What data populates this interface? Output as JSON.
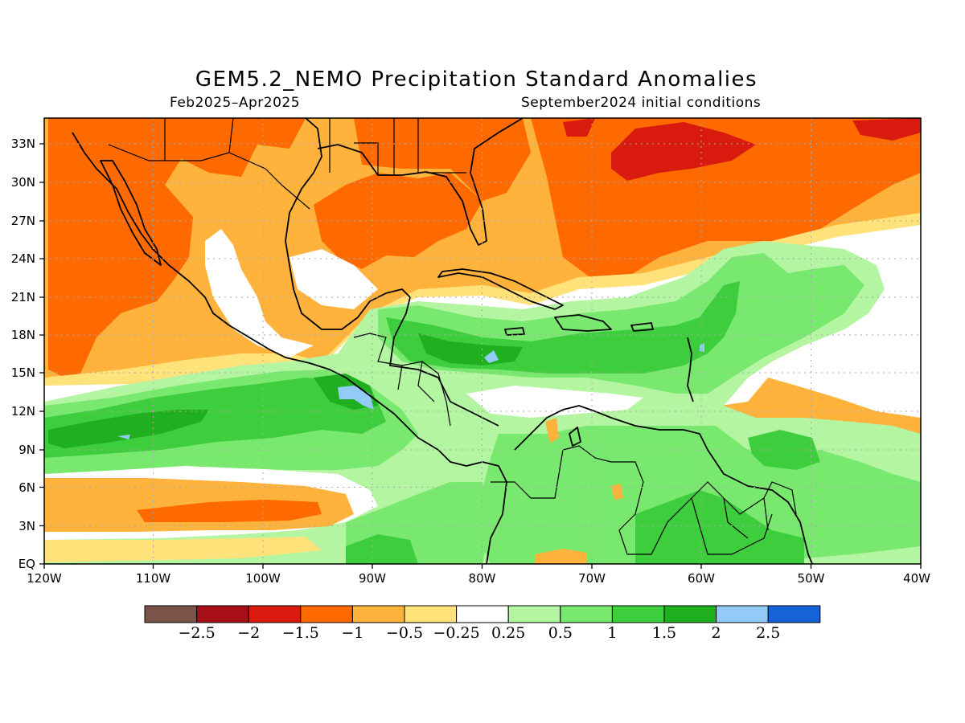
{
  "title": "GEM5.2_NEMO Precipitation Standard Anomalies",
  "period": "Feb2025–Apr2025",
  "init": "September2024 initial conditions",
  "lat_labels": [
    "EQ",
    "3N",
    "6N",
    "9N",
    "12N",
    "15N",
    "18N",
    "21N",
    "24N",
    "27N",
    "30N",
    "33N"
  ],
  "lon_labels": [
    "120W",
    "110W",
    "100W",
    "90W",
    "80W",
    "70W",
    "60W",
    "50W",
    "40W"
  ],
  "colorbar": {
    "colors": [
      "#7a5448",
      "#a50f15",
      "#d91a0f",
      "#ff6a00",
      "#ffb33d",
      "#ffe27a",
      "#ffffff",
      "#b4f5a2",
      "#79e86f",
      "#3dcd3d",
      "#1faf1f",
      "#92cbf5",
      "#1563d6"
    ],
    "labels": [
      "−2.5",
      "−2",
      "−1.5",
      "−1",
      "−0.5",
      "−0.25",
      "0.25",
      "0.5",
      "1",
      "1.5",
      "2",
      "2.5"
    ]
  },
  "colors": {
    "strong_dry": "#d91a0f",
    "dry": "#ff6a00",
    "mod_dry": "#ffb33d",
    "weak_dry": "#ffe27a",
    "neutral": "#ffffff",
    "weak_wet": "#b4f5a2",
    "wet": "#79e86f",
    "mod_wet": "#3dcd3d",
    "strong_wet": "#1faf1f",
    "very_wet": "#92cbf5"
  }
}
